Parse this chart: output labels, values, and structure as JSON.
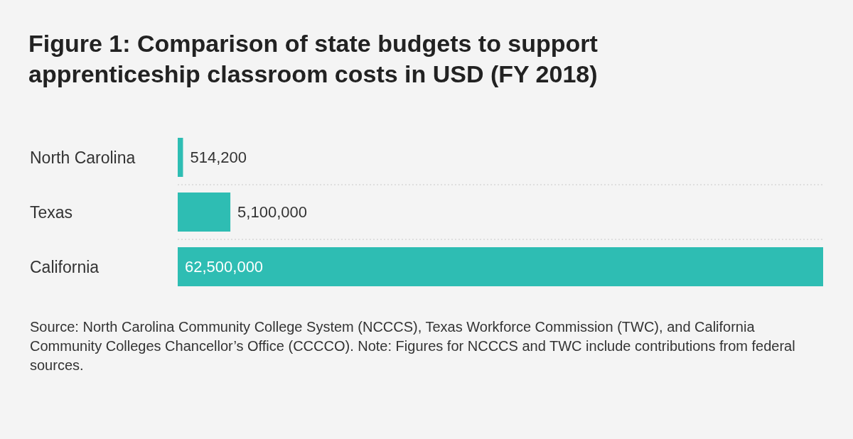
{
  "chart_data": {
    "type": "bar",
    "orientation": "horizontal",
    "title": "Figure 1: Comparison of state budgets to support apprenticeship classroom costs in USD (FY 2018)",
    "categories": [
      "North Carolina",
      "Texas",
      "California"
    ],
    "values": [
      514200,
      5100000,
      62500000
    ],
    "value_labels": [
      "514,200",
      "5,100,000",
      "62,500,000"
    ],
    "color": "#2ebdb3",
    "grid": "y",
    "tick_labels": "y",
    "annotations": [
      "Source: North Carolina Community College System (NCCCS), Texas Workforce Commission (TWC), and California Community Colleges Chancellor’s Office (CCCCO). Note: Figures for NCCCS and TWC include contributions from federal sources."
    ]
  }
}
